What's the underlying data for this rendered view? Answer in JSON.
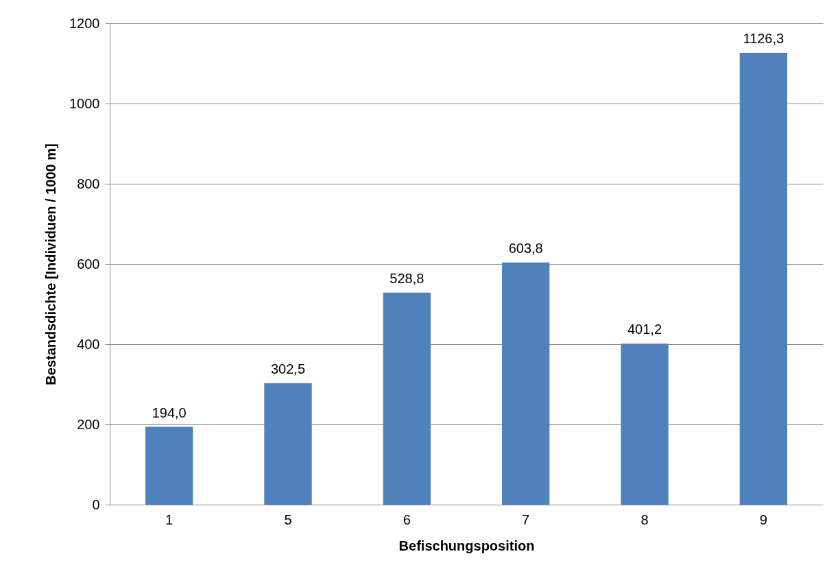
{
  "chart_data": {
    "type": "bar",
    "xlabel": "Befischungsposition",
    "ylabel": "Bestandsdichte [Individuen / 1000 m]",
    "categories": [
      "1",
      "5",
      "6",
      "7",
      "8",
      "9"
    ],
    "values": [
      194.0,
      302.5,
      528.8,
      603.8,
      401.2,
      1126.3
    ],
    "value_labels": [
      "194,0",
      "302,5",
      "528,8",
      "603,8",
      "401,2",
      "1126,3"
    ],
    "color": "#4f81bd",
    "ylim": [
      0,
      1200
    ],
    "yticks": [
      0,
      200,
      400,
      600,
      800,
      1000,
      1200
    ],
    "grid": "y"
  }
}
